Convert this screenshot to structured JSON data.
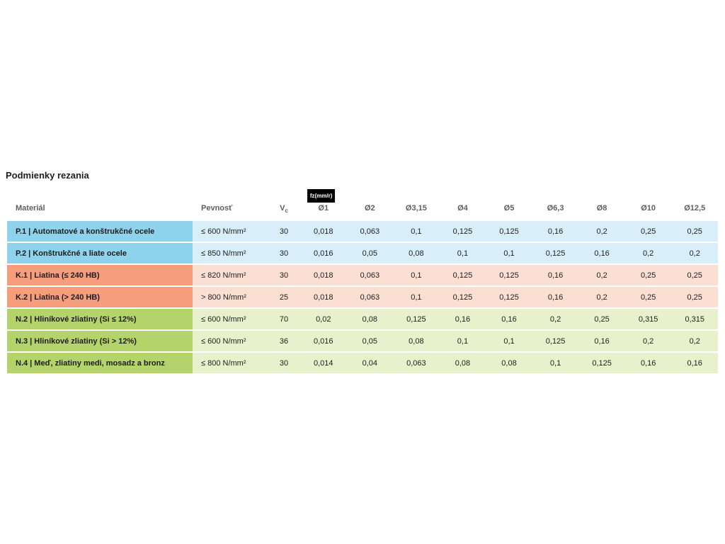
{
  "page": {
    "title": "Podmienky rezania"
  },
  "table": {
    "fz_badge": "fz(mm/r)",
    "headers": {
      "material": "Materiál",
      "strength": "Pevnosť",
      "vc_label": "V",
      "vc_sub": "c",
      "diameters": [
        "Ø1",
        "Ø2",
        "Ø3,15",
        "Ø4",
        "Ø5",
        "Ø6,3",
        "Ø8",
        "Ø10",
        "Ø12,5"
      ]
    },
    "rows": [
      {
        "group": "P",
        "material": "P.1 | Automatové a konštrukčné ocele",
        "strength": "≤ 600 N/mm²",
        "vc": "30",
        "values": [
          "0,018",
          "0,063",
          "0,1",
          "0,125",
          "0,125",
          "0,16",
          "0,2",
          "0,25",
          "0,25"
        ]
      },
      {
        "group": "P",
        "material": "P.2 | Konštrukčné a liate ocele",
        "strength": "≤ 850 N/mm²",
        "vc": "30",
        "values": [
          "0,016",
          "0,05",
          "0,08",
          "0,1",
          "0,1",
          "0,125",
          "0,16",
          "0,2",
          "0,2"
        ]
      },
      {
        "group": "K",
        "material": "K.1 | Liatina (≤ 240 HB)",
        "strength": "≤ 820 N/mm²",
        "vc": "30",
        "values": [
          "0,018",
          "0,063",
          "0,1",
          "0,125",
          "0,125",
          "0,16",
          "0,2",
          "0,25",
          "0,25"
        ]
      },
      {
        "group": "K",
        "material": "K.2 | Liatina (> 240 HB)",
        "strength": "> 800 N/mm²",
        "vc": "25",
        "values": [
          "0,018",
          "0,063",
          "0,1",
          "0,125",
          "0,125",
          "0,16",
          "0,2",
          "0,25",
          "0,25"
        ]
      },
      {
        "group": "N",
        "material": "N.2 | Hliníkové zliatiny (Si ≤ 12%)",
        "strength": "≤ 600 N/mm²",
        "vc": "70",
        "values": [
          "0,02",
          "0,08",
          "0,125",
          "0,16",
          "0,16",
          "0,2",
          "0,25",
          "0,315",
          "0,315"
        ]
      },
      {
        "group": "N",
        "material": "N.3 | Hliníkové zliatiny (Si > 12%)",
        "strength": "≤ 600 N/mm²",
        "vc": "36",
        "values": [
          "0,016",
          "0,05",
          "0,08",
          "0,1",
          "0,1",
          "0,125",
          "0,16",
          "0,2",
          "0,2"
        ]
      },
      {
        "group": "N",
        "material": "N.4 | Meď, zliatiny medi, mosadz a bronz",
        "strength": "≤ 800 N/mm²",
        "vc": "30",
        "values": [
          "0,014",
          "0,04",
          "0,063",
          "0,08",
          "0,08",
          "0,1",
          "0,125",
          "0,16",
          "0,16"
        ]
      }
    ]
  },
  "colors": {
    "p_accent": "#8ed2ec",
    "p_tint": "#d8eff9",
    "k_accent": "#f59d7d",
    "k_tint": "#fcdfd3",
    "n_accent": "#b4d36a",
    "n_tint": "#e7f2cc"
  }
}
